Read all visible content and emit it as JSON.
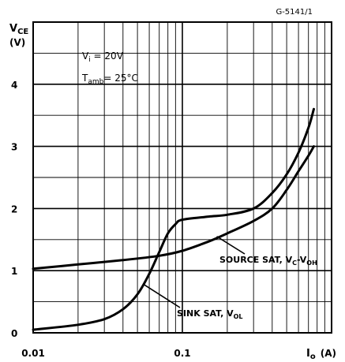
{
  "chart_data": {
    "type": "line",
    "figure_code": "G-5141/1",
    "ylabel": {
      "main": "V",
      "sub": "CE",
      "unit": "(V)"
    },
    "xlabel": {
      "main": "I",
      "sub": "o",
      "unit": "(A)"
    },
    "x_scale": "log",
    "xlim": [
      0.01,
      1
    ],
    "ylim": [
      0,
      5
    ],
    "x_ticks": [
      {
        "value": 0.01,
        "label": "0.01"
      },
      {
        "value": 0.1,
        "label": "0.1"
      }
    ],
    "y_ticks": [
      {
        "value": 0,
        "label": "0"
      },
      {
        "value": 1,
        "label": "1"
      },
      {
        "value": 2,
        "label": "2"
      },
      {
        "value": 3,
        "label": "3"
      },
      {
        "value": 4,
        "label": "4"
      }
    ],
    "grid": true,
    "conditions": [
      {
        "main": "V",
        "sub": "i",
        "rest": " = 20V"
      },
      {
        "main": "T",
        "sub": "amb",
        "rest": "= 25°C"
      }
    ],
    "series": [
      {
        "name": {
          "main": "SOURCE SAT, V",
          "sub1": "C",
          "dash": "-V",
          "sub2": "OH"
        },
        "points": [
          [
            0.01,
            1.03
          ],
          [
            0.02,
            1.1
          ],
          [
            0.04,
            1.17
          ],
          [
            0.07,
            1.24
          ],
          [
            0.1,
            1.32
          ],
          [
            0.15,
            1.47
          ],
          [
            0.2,
            1.6
          ],
          [
            0.3,
            1.8
          ],
          [
            0.4,
            2.0
          ],
          [
            0.5,
            2.3
          ],
          [
            0.6,
            2.6
          ],
          [
            0.7,
            2.85
          ],
          [
            0.76,
            3.0
          ]
        ]
      },
      {
        "name": {
          "main": "SINK SAT, V",
          "sub1": "OL"
        },
        "points": [
          [
            0.01,
            0.05
          ],
          [
            0.02,
            0.13
          ],
          [
            0.03,
            0.22
          ],
          [
            0.04,
            0.38
          ],
          [
            0.05,
            0.62
          ],
          [
            0.06,
            0.95
          ],
          [
            0.07,
            1.3
          ],
          [
            0.08,
            1.6
          ],
          [
            0.09,
            1.75
          ],
          [
            0.1,
            1.82
          ],
          [
            0.15,
            1.87
          ],
          [
            0.2,
            1.9
          ],
          [
            0.3,
            2.0
          ],
          [
            0.4,
            2.25
          ],
          [
            0.5,
            2.55
          ],
          [
            0.6,
            2.9
          ],
          [
            0.7,
            3.3
          ],
          [
            0.76,
            3.6
          ]
        ]
      }
    ]
  }
}
